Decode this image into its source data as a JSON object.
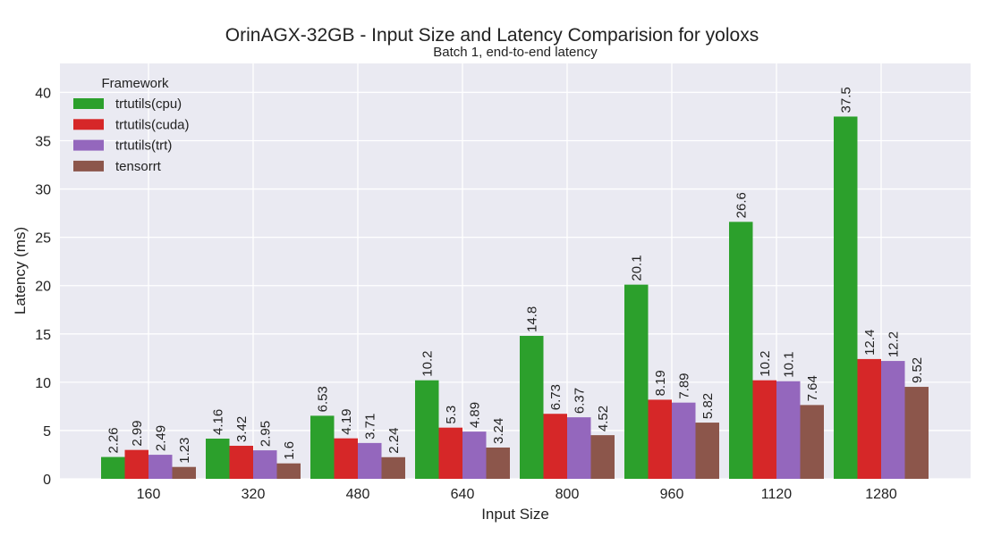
{
  "chart_data": {
    "type": "bar",
    "title": "OrinAGX-32GB - Input Size and Latency Comparision for yoloxs",
    "subtitle": "Batch 1, end-to-end latency",
    "xlabel": "Input Size",
    "ylabel": "Latency (ms)",
    "categories": [
      "160",
      "320",
      "480",
      "640",
      "800",
      "960",
      "1120",
      "1280"
    ],
    "ylim": [
      0,
      43
    ],
    "yticks": [
      0,
      5,
      10,
      15,
      20,
      25,
      30,
      35,
      40
    ],
    "grid": true,
    "legend": {
      "title": "Framework",
      "placement": "top-left"
    },
    "series": [
      {
        "name": "trtutils(cpu)",
        "color": "#2ca02c",
        "values": [
          2.26,
          4.16,
          6.53,
          10.2,
          14.8,
          20.1,
          26.6,
          37.5
        ],
        "labels": [
          "2.26",
          "4.16",
          "6.53",
          "10.2",
          "14.8",
          "20.1",
          "26.6",
          "37.5"
        ]
      },
      {
        "name": "trtutils(cuda)",
        "color": "#d62728",
        "values": [
          2.99,
          3.42,
          4.19,
          5.3,
          6.73,
          8.19,
          10.2,
          12.4
        ],
        "labels": [
          "2.99",
          "3.42",
          "4.19",
          "5.3",
          "6.73",
          "8.19",
          "10.2",
          "12.4"
        ]
      },
      {
        "name": "trtutils(trt)",
        "color": "#9467bd",
        "values": [
          2.49,
          2.95,
          3.71,
          4.89,
          6.37,
          7.89,
          10.1,
          12.2
        ],
        "labels": [
          "2.49",
          "2.95",
          "3.71",
          "4.89",
          "6.37",
          "7.89",
          "10.1",
          "12.2"
        ]
      },
      {
        "name": "tensorrt",
        "color": "#8c564b",
        "values": [
          1.23,
          1.6,
          2.24,
          3.24,
          4.52,
          5.82,
          7.64,
          9.52
        ],
        "labels": [
          "1.23",
          "1.6",
          "2.24",
          "3.24",
          "4.52",
          "5.82",
          "7.64",
          "9.52"
        ]
      }
    ]
  }
}
